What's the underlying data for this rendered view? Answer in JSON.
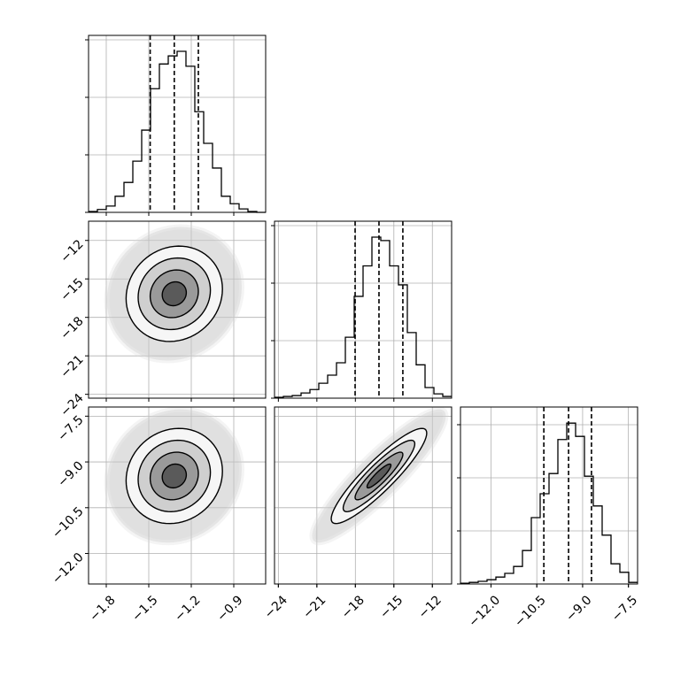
{
  "chart_data": {
    "type": "corner",
    "grid": true,
    "contour_sigmas": [
      0.5,
      1,
      1.5,
      2
    ],
    "cloud_sigma": 2.8,
    "params": [
      {
        "lim": [
          -1.925,
          -0.675
        ],
        "ticks": [
          {
            "value": -1.8,
            "label": "−1.8"
          },
          {
            "value": -1.5,
            "label": "−1.5"
          },
          {
            "value": -1.2,
            "label": "−1.2"
          },
          {
            "value": -0.9,
            "label": "−0.9"
          }
        ],
        "quantiles": [
          -1.49,
          -1.32,
          -1.15
        ],
        "mean": -1.32,
        "sd": 0.17,
        "bins": [
          -1.925,
          -1.8625,
          -1.8,
          -1.7375,
          -1.675,
          -1.6125,
          -1.55,
          -1.4875,
          -1.425,
          -1.3625,
          -1.3,
          -1.2375,
          -1.175,
          -1.1125,
          -1.05,
          -0.9875,
          -0.925,
          -0.8625,
          -0.8,
          -0.7375,
          -0.675
        ],
        "counts": [
          15,
          50,
          110,
          280,
          520,
          890,
          1430,
          2150,
          2580,
          2720,
          2800,
          2540,
          1750,
          1200,
          770,
          280,
          150,
          60,
          15,
          0
        ],
        "hist_ylim": [
          0,
          3077
        ],
        "hist_yticks": [
          0,
          1000,
          2000,
          3000
        ]
      },
      {
        "lim": [
          -24.3,
          -10.5
        ],
        "ticks": [
          {
            "value": -24,
            "label": "−24"
          },
          {
            "value": -21,
            "label": "−21"
          },
          {
            "value": -18,
            "label": "−18"
          },
          {
            "value": -15,
            "label": "−15"
          },
          {
            "value": -12,
            "label": "−12"
          }
        ],
        "quantiles": [
          -18.02,
          -16.16,
          -14.3
        ],
        "mean": -16.16,
        "sd": 1.86,
        "bins": [
          -24.3,
          -23.61,
          -22.92,
          -22.23,
          -21.54,
          -20.85,
          -20.16,
          -19.47,
          -18.78,
          -18.09,
          -17.4,
          -16.71,
          -16.02,
          -15.33,
          -14.64,
          -13.95,
          -13.26,
          -12.57,
          -11.88,
          -11.19,
          -10.5
        ],
        "counts": [
          15,
          30,
          45,
          90,
          150,
          260,
          400,
          615,
          1060,
          1770,
          2300,
          2800,
          2740,
          2300,
          1970,
          1140,
          580,
          185,
          75,
          30
        ],
        "hist_ylim": [
          0,
          3077
        ],
        "hist_yticks": [
          0,
          1000,
          2000,
          3000
        ]
      },
      {
        "lim": [
          -13.0,
          -7.2
        ],
        "ticks": [
          {
            "value": -12.0,
            "label": "−12.0"
          },
          {
            "value": -10.5,
            "label": "−10.5"
          },
          {
            "value": -9.0,
            "label": "−9.0"
          },
          {
            "value": -7.5,
            "label": "−7.5"
          }
        ],
        "quantiles": [
          -10.27,
          -9.46,
          -8.71
        ],
        "mean": -9.46,
        "sd": 0.78,
        "bins": [
          -13.0,
          -12.71,
          -12.42,
          -12.13,
          -11.84,
          -11.55,
          -11.26,
          -10.97,
          -10.68,
          -10.39,
          -10.1,
          -9.81,
          -9.52,
          -9.23,
          -8.94,
          -8.65,
          -8.36,
          -8.07,
          -7.78,
          -7.49,
          -7.2
        ],
        "counts": [
          15,
          30,
          50,
          80,
          130,
          200,
          330,
          630,
          1250,
          1700,
          2080,
          2720,
          3030,
          2780,
          2030,
          1470,
          920,
          380,
          220,
          30
        ],
        "hist_ylim": [
          0,
          3333
        ],
        "hist_yticks": [
          0,
          1000,
          2000,
          3000
        ]
      }
    ],
    "correlations": [
      {
        "pair": [
          1,
          0
        ],
        "rho": 0.1
      },
      {
        "pair": [
          2,
          0
        ],
        "rho": 0.1
      },
      {
        "pair": [
          2,
          1
        ],
        "rho": 0.9
      }
    ]
  }
}
